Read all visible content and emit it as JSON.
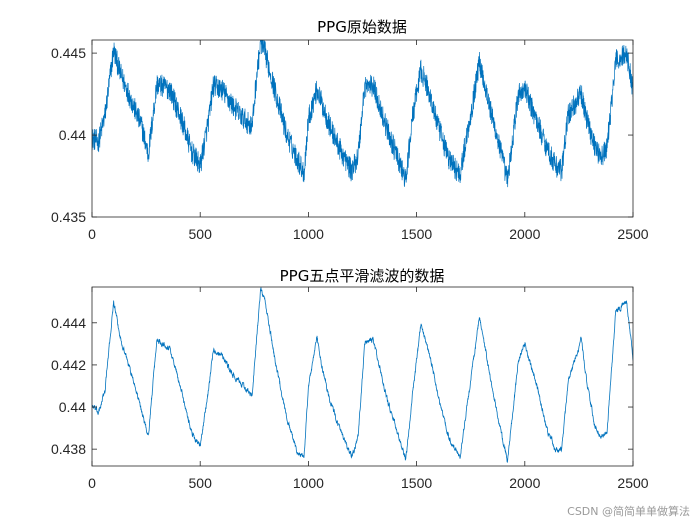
{
  "watermark": "CSDN @简简单单做算法",
  "colors": {
    "line": "#0072BD",
    "axis": "#262626",
    "background": "#ffffff"
  },
  "chart_data": [
    {
      "type": "line",
      "title": "PPG原始数据",
      "xlim": [
        0,
        2500
      ],
      "ylim": [
        0.435,
        0.4458
      ],
      "xticks": [
        0,
        500,
        1000,
        1500,
        2000,
        2500
      ],
      "xtick_labels": [
        "0",
        "500",
        "1000",
        "1500",
        "2000",
        "2500"
      ],
      "yticks": [
        0.435,
        0.44,
        0.445
      ],
      "ytick_labels": [
        "0.435",
        "0.44",
        "0.445"
      ],
      "grid": false,
      "noise": 0.0007,
      "series": [
        {
          "x": [
            0,
            30,
            60,
            100,
            130,
            170,
            230,
            260,
            300,
            360,
            420,
            460,
            500,
            540,
            560,
            600,
            650,
            700,
            740,
            760,
            780,
            800,
            850,
            900,
            950,
            980,
            1000,
            1040,
            1060,
            1100,
            1150,
            1200,
            1230,
            1260,
            1300,
            1360,
            1420,
            1450,
            1480,
            1520,
            1560,
            1600,
            1650,
            1700,
            1760,
            1790,
            1820,
            1850,
            1880,
            1920,
            1970,
            2000,
            2060,
            2100,
            2140,
            2170,
            2200,
            2260,
            2290,
            2320,
            2350,
            2380,
            2420,
            2470,
            2500
          ],
          "y": [
            0.4398,
            0.4396,
            0.4412,
            0.4452,
            0.4438,
            0.4425,
            0.4405,
            0.4388,
            0.4431,
            0.4428,
            0.4407,
            0.439,
            0.4381,
            0.441,
            0.443,
            0.4428,
            0.4418,
            0.441,
            0.4405,
            0.4435,
            0.4457,
            0.445,
            0.4425,
            0.44,
            0.4385,
            0.4377,
            0.441,
            0.4428,
            0.442,
            0.4405,
            0.439,
            0.4378,
            0.4388,
            0.443,
            0.443,
            0.4405,
            0.4383,
            0.4372,
            0.441,
            0.444,
            0.4425,
            0.4405,
            0.4385,
            0.4376,
            0.442,
            0.4445,
            0.4428,
            0.441,
            0.4395,
            0.4372,
            0.4425,
            0.4428,
            0.4407,
            0.4393,
            0.4382,
            0.4378,
            0.4412,
            0.4425,
            0.4408,
            0.4395,
            0.4386,
            0.4392,
            0.4445,
            0.445,
            0.4428
          ]
        }
      ]
    },
    {
      "type": "line",
      "title": "PPG五点平滑滤波的数据",
      "xlim": [
        0,
        2500
      ],
      "ylim": [
        0.4372,
        0.4457
      ],
      "xticks": [
        0,
        500,
        1000,
        1500,
        2000,
        2500
      ],
      "xtick_labels": [
        "0",
        "500",
        "1000",
        "1500",
        "2000",
        "2500"
      ],
      "yticks": [
        0.438,
        0.44,
        0.442,
        0.444
      ],
      "ytick_labels": [
        "0.438",
        "0.44",
        "0.442",
        "0.444"
      ],
      "grid": false,
      "noise": 0.00025,
      "series": [
        {
          "x": [
            0,
            30,
            60,
            100,
            130,
            170,
            230,
            260,
            300,
            360,
            420,
            460,
            500,
            540,
            560,
            600,
            650,
            700,
            740,
            760,
            780,
            800,
            850,
            900,
            950,
            980,
            1000,
            1040,
            1060,
            1100,
            1150,
            1200,
            1230,
            1260,
            1300,
            1360,
            1420,
            1450,
            1480,
            1520,
            1560,
            1600,
            1650,
            1700,
            1760,
            1790,
            1820,
            1850,
            1880,
            1920,
            1970,
            2000,
            2060,
            2100,
            2140,
            2170,
            2200,
            2260,
            2290,
            2320,
            2350,
            2380,
            2420,
            2470,
            2500
          ],
          "y": [
            0.4401,
            0.4397,
            0.4408,
            0.445,
            0.4433,
            0.442,
            0.4398,
            0.4386,
            0.4432,
            0.4428,
            0.4405,
            0.4388,
            0.4381,
            0.441,
            0.4427,
            0.4425,
            0.4415,
            0.441,
            0.4405,
            0.4432,
            0.4456,
            0.445,
            0.442,
            0.4395,
            0.4378,
            0.4376,
            0.441,
            0.4433,
            0.442,
            0.4403,
            0.4388,
            0.4376,
            0.4386,
            0.443,
            0.4432,
            0.4405,
            0.4385,
            0.4374,
            0.4405,
            0.444,
            0.4425,
            0.4405,
            0.4385,
            0.4376,
            0.442,
            0.4443,
            0.4426,
            0.4408,
            0.4393,
            0.4374,
            0.4422,
            0.443,
            0.4408,
            0.439,
            0.438,
            0.4379,
            0.4412,
            0.4432,
            0.441,
            0.4393,
            0.4385,
            0.4388,
            0.4445,
            0.445,
            0.4423
          ]
        }
      ]
    }
  ]
}
